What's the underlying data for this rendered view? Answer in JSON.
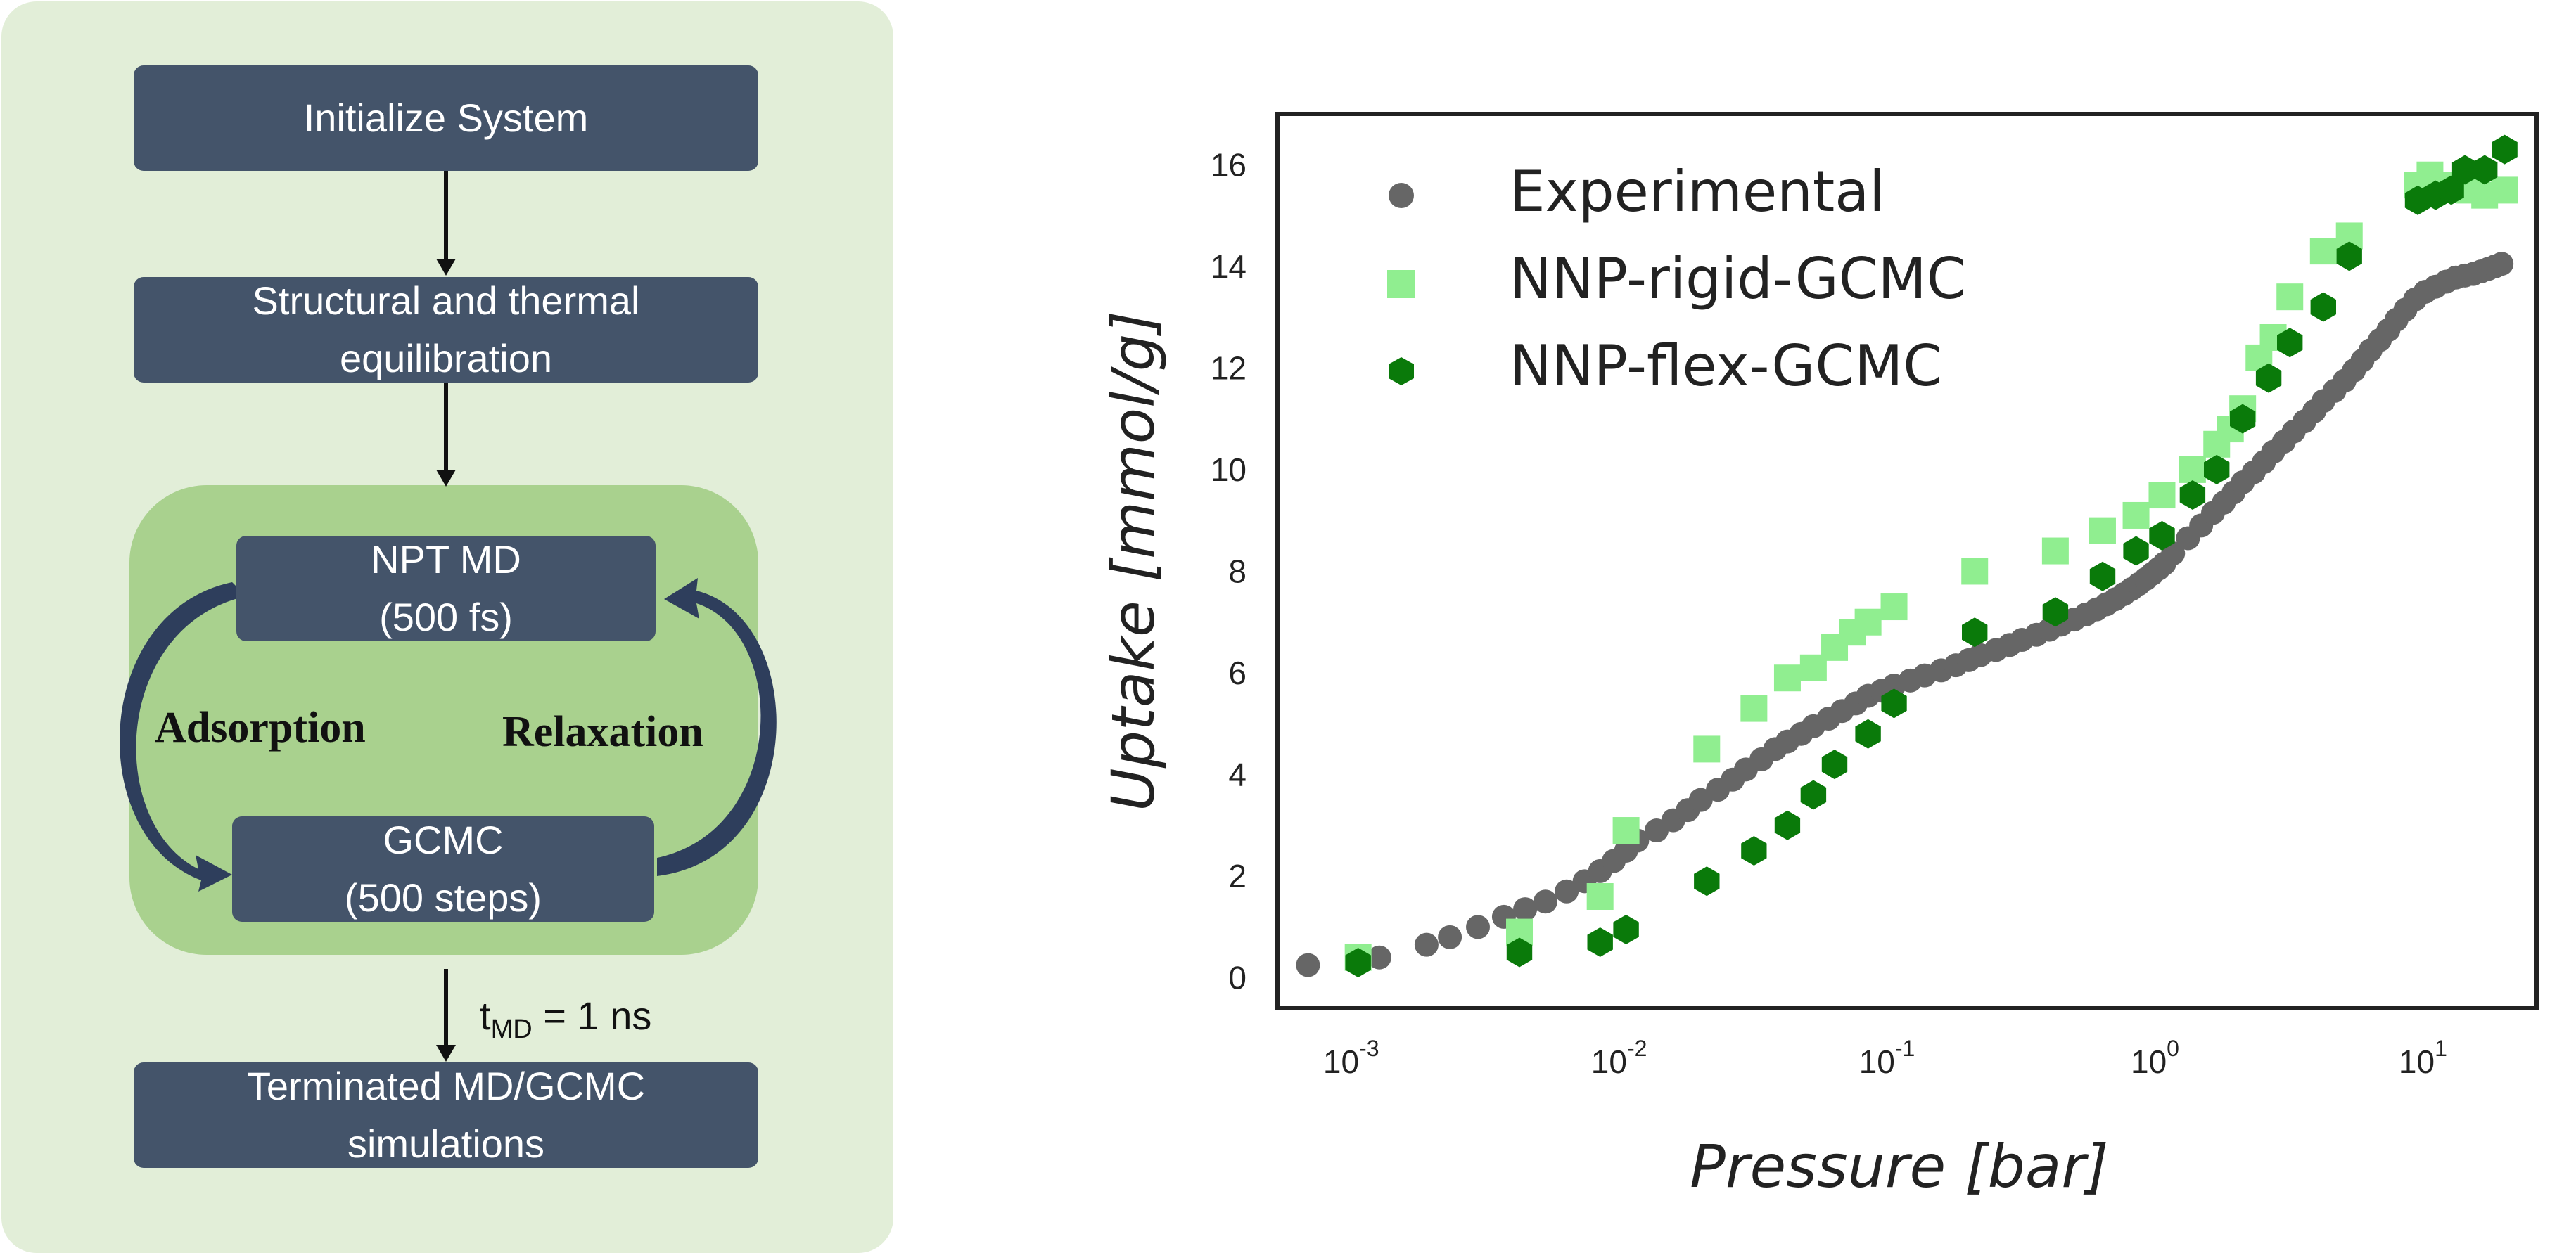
{
  "flowchart": {
    "steps": [
      "Initialize System",
      "Structural and thermal\nequilibration",
      "NPT MD\n(500 fs)",
      "GCMC\n(500 steps)",
      "Terminated MD/GCMC\nsimulations"
    ],
    "loop_left_label": "Adsorption",
    "loop_right_label": "Relaxation",
    "termination_label": {
      "base": "t",
      "sub": "MD",
      "rest": " = 1 ns"
    },
    "colors": {
      "panel": "#e2eed8",
      "loop": "#a9d18e",
      "box": "#44546a",
      "loop_arrow": "#2e3e5c"
    }
  },
  "chart_data": {
    "type": "scatter",
    "xlabel": "Pressure [bar]",
    "ylabel": "Uptake [mmol/g]",
    "xscale": "log",
    "xlim": [
      0.0005,
      25
    ],
    "ylim": [
      -0.6,
      17
    ],
    "xticks": [
      "10^-3",
      "10^-2",
      "10^-1",
      "10^0",
      "10^1"
    ],
    "yticks": [
      0,
      2,
      4,
      6,
      8,
      10,
      12,
      14,
      16
    ],
    "grid": false,
    "legend_position": "top-left",
    "series": [
      {
        "name": "Experimental",
        "marker": "circle",
        "color": "#666666",
        "points": [
          [
            0.00065,
            0.25
          ],
          [
            0.0012,
            0.4
          ],
          [
            0.0018,
            0.65
          ],
          [
            0.0022,
            0.8
          ],
          [
            0.0028,
            1.0
          ],
          [
            0.0035,
            1.2
          ],
          [
            0.0042,
            1.35
          ],
          [
            0.005,
            1.5
          ],
          [
            0.006,
            1.7
          ],
          [
            0.007,
            1.9
          ],
          [
            0.008,
            2.1
          ],
          [
            0.009,
            2.3
          ],
          [
            0.01,
            2.5
          ],
          [
            0.011,
            2.7
          ],
          [
            0.013,
            2.9
          ],
          [
            0.015,
            3.1
          ],
          [
            0.017,
            3.3
          ],
          [
            0.019,
            3.5
          ],
          [
            0.022,
            3.7
          ],
          [
            0.025,
            3.9
          ],
          [
            0.028,
            4.1
          ],
          [
            0.032,
            4.3
          ],
          [
            0.036,
            4.5
          ],
          [
            0.04,
            4.65
          ],
          [
            0.045,
            4.8
          ],
          [
            0.05,
            4.95
          ],
          [
            0.057,
            5.1
          ],
          [
            0.064,
            5.25
          ],
          [
            0.072,
            5.4
          ],
          [
            0.08,
            5.55
          ],
          [
            0.09,
            5.65
          ],
          [
            0.1,
            5.75
          ],
          [
            0.115,
            5.85
          ],
          [
            0.13,
            5.95
          ],
          [
            0.15,
            6.05
          ],
          [
            0.17,
            6.15
          ],
          [
            0.19,
            6.25
          ],
          [
            0.21,
            6.35
          ],
          [
            0.24,
            6.45
          ],
          [
            0.27,
            6.55
          ],
          [
            0.3,
            6.65
          ],
          [
            0.34,
            6.75
          ],
          [
            0.38,
            6.85
          ],
          [
            0.42,
            6.95
          ],
          [
            0.47,
            7.05
          ],
          [
            0.52,
            7.15
          ],
          [
            0.57,
            7.25
          ],
          [
            0.62,
            7.35
          ],
          [
            0.67,
            7.45
          ],
          [
            0.72,
            7.55
          ],
          [
            0.77,
            7.65
          ],
          [
            0.82,
            7.75
          ],
          [
            0.87,
            7.85
          ],
          [
            0.92,
            7.95
          ],
          [
            0.97,
            8.05
          ],
          [
            1.02,
            8.15
          ],
          [
            1.1,
            8.35
          ],
          [
            1.25,
            8.65
          ],
          [
            1.4,
            8.9
          ],
          [
            1.55,
            9.15
          ],
          [
            1.7,
            9.35
          ],
          [
            1.85,
            9.55
          ],
          [
            2.0,
            9.75
          ],
          [
            2.2,
            9.95
          ],
          [
            2.4,
            10.15
          ],
          [
            2.6,
            10.35
          ],
          [
            2.85,
            10.55
          ],
          [
            3.1,
            10.75
          ],
          [
            3.4,
            10.95
          ],
          [
            3.7,
            11.15
          ],
          [
            4.0,
            11.35
          ],
          [
            4.4,
            11.55
          ],
          [
            4.8,
            11.75
          ],
          [
            5.2,
            11.95
          ],
          [
            5.6,
            12.15
          ],
          [
            6.0,
            12.35
          ],
          [
            6.5,
            12.55
          ],
          [
            7.0,
            12.75
          ],
          [
            7.5,
            12.95
          ],
          [
            8.1,
            13.15
          ],
          [
            8.8,
            13.35
          ],
          [
            9.6,
            13.5
          ],
          [
            10.5,
            13.6
          ],
          [
            11.5,
            13.7
          ],
          [
            12.5,
            13.78
          ],
          [
            13.5,
            13.82
          ],
          [
            14.5,
            13.85
          ],
          [
            15.5,
            13.9
          ],
          [
            16.5,
            13.95
          ],
          [
            17.5,
            14.0
          ],
          [
            18.5,
            14.05
          ]
        ]
      },
      {
        "name": "NNP-rigid-GCMC",
        "marker": "square",
        "color": "#90ee90",
        "points": [
          [
            0.001,
            0.4
          ],
          [
            0.004,
            0.9
          ],
          [
            0.008,
            1.6
          ],
          [
            0.01,
            2.9
          ],
          [
            0.02,
            4.5
          ],
          [
            0.03,
            5.3
          ],
          [
            0.04,
            5.9
          ],
          [
            0.05,
            6.1
          ],
          [
            0.06,
            6.5
          ],
          [
            0.07,
            6.8
          ],
          [
            0.08,
            7.0
          ],
          [
            0.1,
            7.3
          ],
          [
            0.2,
            8.0
          ],
          [
            0.4,
            8.4
          ],
          [
            0.6,
            8.8
          ],
          [
            0.8,
            9.1
          ],
          [
            1.0,
            9.5
          ],
          [
            1.3,
            10.0
          ],
          [
            1.6,
            10.5
          ],
          [
            2.0,
            11.2
          ],
          [
            1.8,
            10.8
          ],
          [
            2.3,
            12.2
          ],
          [
            2.6,
            12.6
          ],
          [
            3.0,
            13.4
          ],
          [
            4.0,
            14.3
          ],
          [
            5.0,
            14.6
          ],
          [
            9.0,
            15.6
          ],
          [
            10.0,
            15.8
          ],
          [
            12.0,
            15.6
          ],
          [
            14.0,
            15.5
          ],
          [
            16.0,
            15.4
          ],
          [
            19.0,
            15.5
          ]
        ]
      },
      {
        "name": "NNP-flex-GCMC",
        "marker": "hexagon",
        "color": "#0a7a0a",
        "points": [
          [
            0.001,
            0.3
          ],
          [
            0.004,
            0.5
          ],
          [
            0.008,
            0.7
          ],
          [
            0.01,
            0.95
          ],
          [
            0.02,
            1.9
          ],
          [
            0.03,
            2.5
          ],
          [
            0.04,
            3.0
          ],
          [
            0.05,
            3.6
          ],
          [
            0.06,
            4.2
          ],
          [
            0.08,
            4.8
          ],
          [
            0.1,
            5.4
          ],
          [
            0.2,
            6.8
          ],
          [
            0.4,
            7.2
          ],
          [
            0.6,
            7.9
          ],
          [
            0.8,
            8.4
          ],
          [
            1.0,
            8.7
          ],
          [
            1.3,
            9.5
          ],
          [
            1.6,
            10.0
          ],
          [
            2.0,
            11.0
          ],
          [
            2.5,
            11.8
          ],
          [
            3.0,
            12.5
          ],
          [
            4.0,
            13.2
          ],
          [
            5.0,
            14.2
          ],
          [
            9.0,
            15.3
          ],
          [
            10.5,
            15.4
          ],
          [
            12.0,
            15.5
          ],
          [
            13.5,
            15.9
          ],
          [
            16.0,
            15.9
          ],
          [
            19.0,
            16.3
          ]
        ]
      }
    ]
  }
}
